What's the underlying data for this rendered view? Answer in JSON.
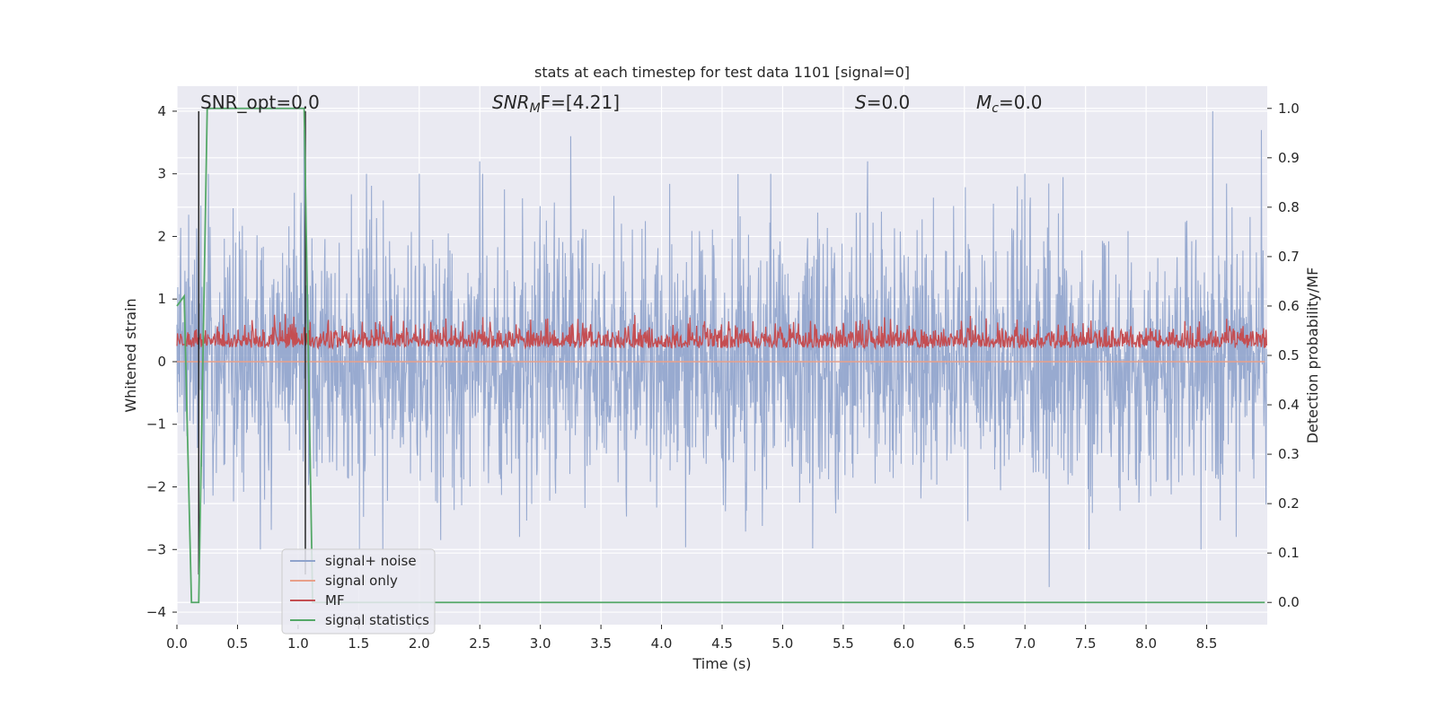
{
  "chart_data": {
    "type": "line",
    "title": "stats at each timestep for test data 1101 [signal=0]",
    "xlabel": "Time (s)",
    "ylabel": "Whitened strain",
    "ylabel_right": "Detection probability/MF",
    "xlim": [
      0.0,
      9.0
    ],
    "ylim": [
      -4.2,
      4.4
    ],
    "ylim_right": [
      -0.045,
      1.045
    ],
    "xticks": [
      0.0,
      0.5,
      1.0,
      1.5,
      2.0,
      2.5,
      3.0,
      3.5,
      4.0,
      4.5,
      5.0,
      5.5,
      6.0,
      6.5,
      7.0,
      7.5,
      8.0,
      8.5
    ],
    "xtick_labels": [
      "0.0",
      "0.5",
      "1.0",
      "1.5",
      "2.0",
      "2.5",
      "3.0",
      "3.5",
      "4.0",
      "4.5",
      "5.0",
      "5.5",
      "6.0",
      "6.5",
      "7.0",
      "7.5",
      "8.0",
      "8.5"
    ],
    "yticks": [
      4,
      3,
      2,
      1,
      0,
      -1,
      -2,
      -3,
      -4
    ],
    "ytick_labels": [
      "4",
      "3",
      "2",
      "1",
      "0",
      "−1",
      "−2",
      "−3",
      "−4"
    ],
    "yticks_right": [
      1.0,
      0.9,
      0.8,
      0.7,
      0.6,
      0.5,
      0.4,
      0.3,
      0.2,
      0.1,
      0.0
    ],
    "ytick_labels_right": [
      "1.0",
      "0.9",
      "0.8",
      "0.7",
      "0.6",
      "0.5",
      "0.4",
      "0.3",
      "0.2",
      "0.1",
      "0.0"
    ],
    "grid": true,
    "legend_position": "lower-left",
    "annotations": {
      "snr_opt": "SNR_opt=0.0",
      "snr_mf_sym": "SNR",
      "snr_mf_sub": "M",
      "snr_mf_rest": "F=[4.21]",
      "s_sym": "S",
      "s_rest": "=0.0",
      "mc_sym": "M",
      "mc_sub": "c",
      "mc_rest": "=0.0"
    },
    "series": [
      {
        "name": "signal+ noise",
        "color": "#8fa3cc",
        "description_values": "whitened strain noise, approx within [-3.6, 4.0]",
        "peaks_x": [
          0.18,
          1.05,
          2.5,
          3.25,
          4.9,
          5.7,
          7.2,
          8.55,
          8.95
        ],
        "peaks_y": [
          3.4,
          3.7,
          3.2,
          3.6,
          3.0,
          3.2,
          -3.6,
          4.0,
          3.7
        ]
      },
      {
        "name": "signal only",
        "color": "#e8a08a",
        "values_constant": 0.0
      },
      {
        "name": "MF",
        "color": "#c44e52",
        "axis": "right",
        "approx_range": [
          0.5,
          0.6
        ]
      },
      {
        "name": "signal statistics",
        "color": "#55a868",
        "axis": "right",
        "x": [
          0.0,
          0.06,
          0.12,
          0.18,
          0.25,
          1.05,
          1.12,
          8.98
        ],
        "y": [
          0.6,
          0.62,
          0.0,
          0.0,
          1.0,
          1.0,
          0.0,
          0.0
        ]
      }
    ],
    "vlines": {
      "color": "#262626",
      "x": [
        0.18,
        1.06
      ],
      "y_top": 4.0
    }
  }
}
